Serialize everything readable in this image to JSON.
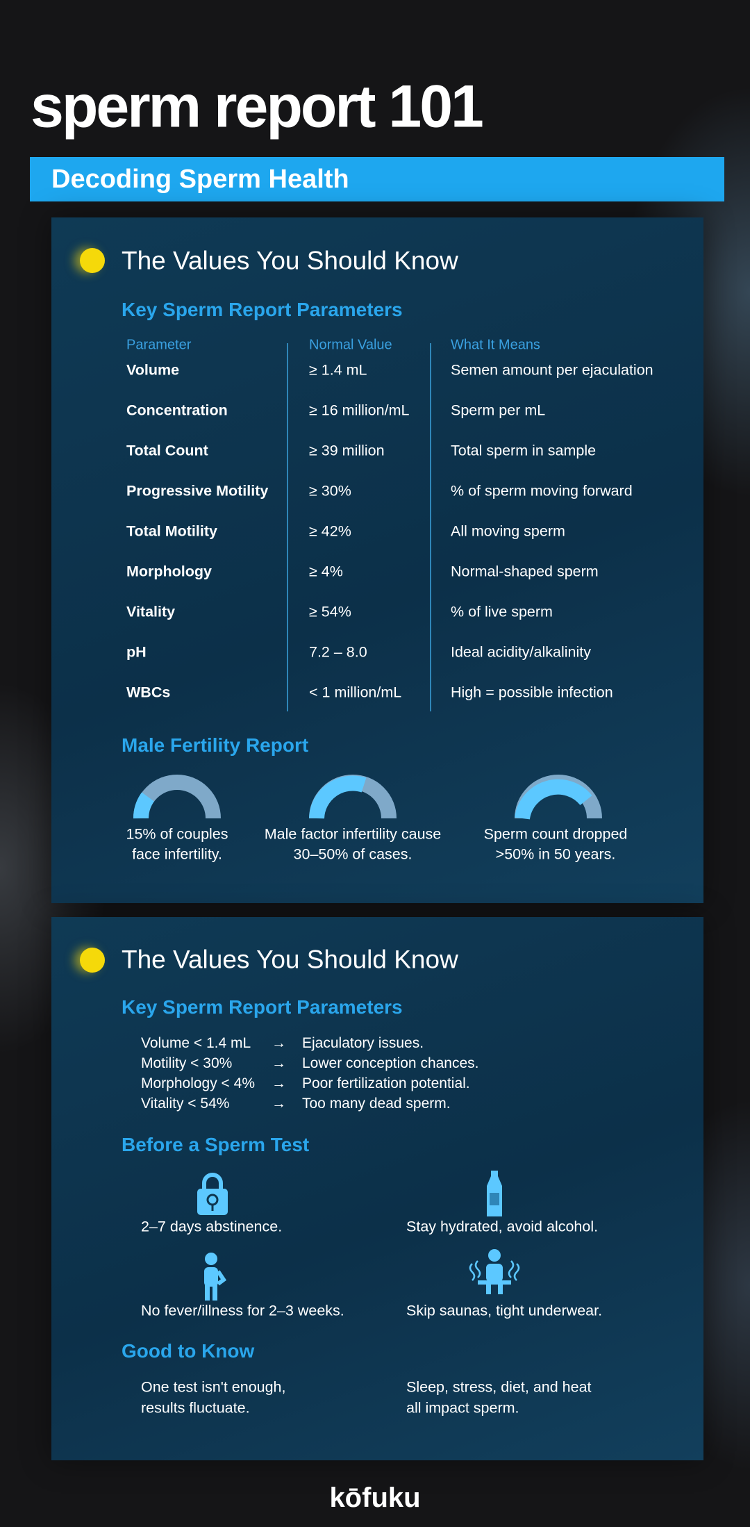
{
  "header": {
    "title": "sperm report 101",
    "subtitle": "Decoding Sperm Health"
  },
  "sections": [
    {
      "heading": "The Values You Should Know",
      "subheading": "Key Sperm Report Parameters",
      "table": {
        "columns": [
          "Parameter",
          "Normal Value",
          "What It Means"
        ],
        "rows": [
          [
            "Volume",
            "≥ 1.4 mL",
            "Semen amount per ejaculation"
          ],
          [
            "Concentration",
            "≥ 16 million/mL",
            "Sperm per mL"
          ],
          [
            "Total Count",
            "≥ 39 million",
            "Total sperm in sample"
          ],
          [
            "Progressive Motility",
            "≥ 30%",
            "% of sperm moving forward"
          ],
          [
            "Total Motility",
            "≥ 42%",
            "All moving sperm"
          ],
          [
            "Morphology",
            "≥ 4%",
            "Normal-shaped sperm"
          ],
          [
            "Vitality",
            "≥ 54%",
            "% of live sperm"
          ],
          [
            "pH",
            "7.2 – 8.0",
            "Ideal acidity/alkalinity"
          ],
          [
            "WBCs",
            "< 1 million/mL",
            "High = possible infection"
          ]
        ]
      },
      "report": {
        "heading": "Male Fertility Report",
        "facts": [
          [
            "15% of couples",
            "face infertility."
          ],
          [
            "Male factor infertility cause",
            "30–50% of cases."
          ],
          [
            "Sperm count dropped",
            ">50% in 50 years."
          ]
        ]
      }
    },
    {
      "heading": "The Values You Should Know",
      "subheading": "Key Sperm Report Parameters",
      "thresholds": [
        [
          "Volume < 1.4 mL",
          "→",
          "Ejaculatory issues."
        ],
        [
          "Motility < 30%",
          "→",
          "Lower conception chances."
        ],
        [
          "Morphology < 4%",
          "→",
          "Poor fertilization potential."
        ],
        [
          "Vitality < 54%",
          "→",
          "Too many dead sperm."
        ]
      ],
      "before_test": {
        "heading": "Before a Sperm Test",
        "tips": [
          "2–7 days abstinence.",
          "Stay hydrated, avoid alcohol.",
          "No fever/illness for 2–3 weeks.",
          "Skip saunas, tight underwear."
        ]
      },
      "good_to_know": {
        "heading": "Good to Know",
        "notes": [
          [
            "One test isn't enough,",
            "results fluctuate."
          ],
          [
            "Sleep, stress, diet, and heat",
            "all impact sperm."
          ]
        ]
      }
    }
  ],
  "footer": {
    "brand": "kōfuku"
  }
}
